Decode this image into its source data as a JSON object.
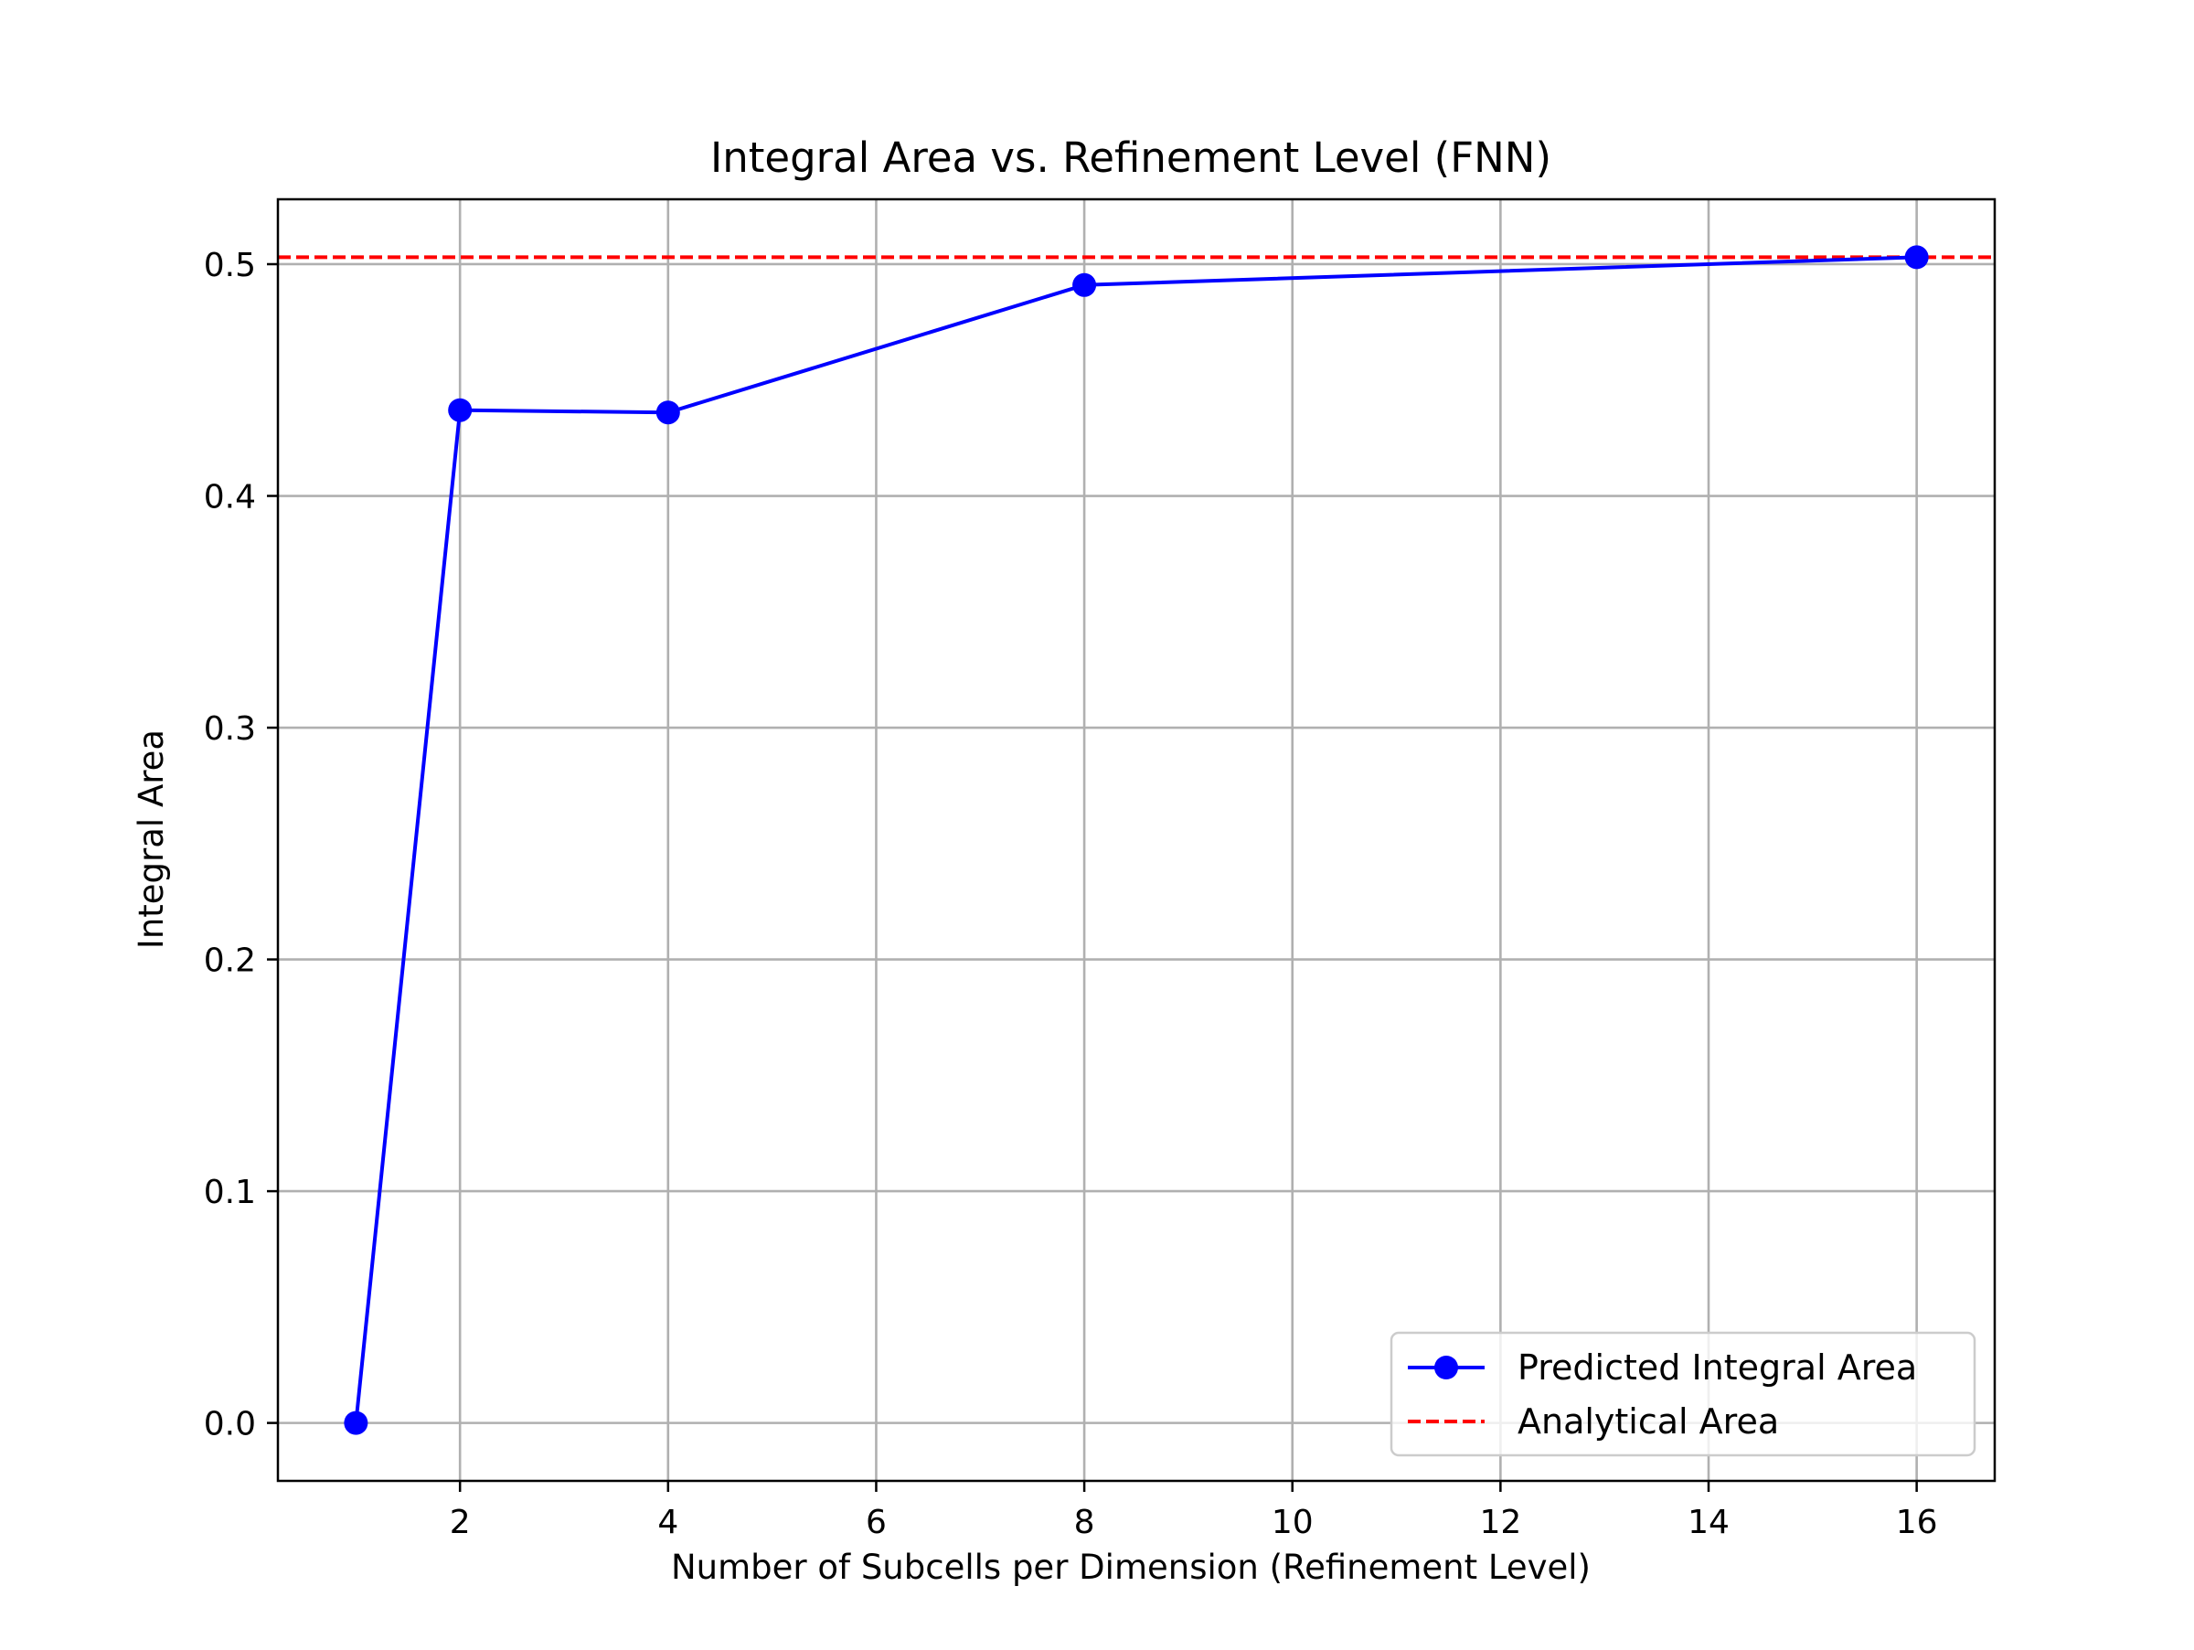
{
  "chart_data": {
    "type": "line",
    "title": "Integral Area vs. Refinement Level (FNN)",
    "xlabel": "Number of Subcells per Dimension (Refinement Level)",
    "ylabel": "Integral Area",
    "xlim": [
      0.25,
      16.75
    ],
    "ylim": [
      -0.025,
      0.528
    ],
    "xticks": [
      2,
      4,
      6,
      8,
      10,
      12,
      14,
      16
    ],
    "yticks": [
      0.0,
      0.1,
      0.2,
      0.3,
      0.4,
      0.5
    ],
    "xtick_labels": [
      "2",
      "4",
      "6",
      "8",
      "10",
      "12",
      "14",
      "16"
    ],
    "ytick_labels": [
      "0.0",
      "0.1",
      "0.2",
      "0.3",
      "0.4",
      "0.5"
    ],
    "grid": true,
    "legend_position": "lower-right",
    "series": [
      {
        "name": "Predicted Integral Area",
        "style": "solid-line-circle-markers",
        "color": "#0000ff",
        "x": [
          1,
          2,
          4,
          8,
          16
        ],
        "y": [
          0.0,
          0.437,
          0.436,
          0.491,
          0.503
        ]
      },
      {
        "name": "Analytical Area",
        "style": "dashed-horizontal-line",
        "color": "#ff0000",
        "y": 0.503
      }
    ]
  }
}
